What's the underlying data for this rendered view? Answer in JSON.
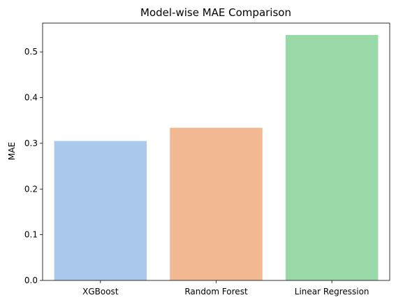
{
  "chart_data": {
    "type": "bar",
    "title": "Model-wise MAE Comparison",
    "xlabel": "",
    "ylabel": "MAE",
    "categories": [
      "XGBoost",
      "Random Forest",
      "Linear Regression"
    ],
    "values": [
      0.305,
      0.334,
      0.537
    ],
    "colors": [
      "#abc9ee",
      "#f1b892",
      "#98d9a7"
    ],
    "ylim": [
      0,
      0.563
    ],
    "yticks": [
      0.0,
      0.1,
      0.2,
      0.3,
      0.4,
      0.5
    ],
    "ytick_labels": [
      "0.0",
      "0.1",
      "0.2",
      "0.3",
      "0.4",
      "0.5"
    ],
    "grid": false,
    "legend": "none"
  }
}
